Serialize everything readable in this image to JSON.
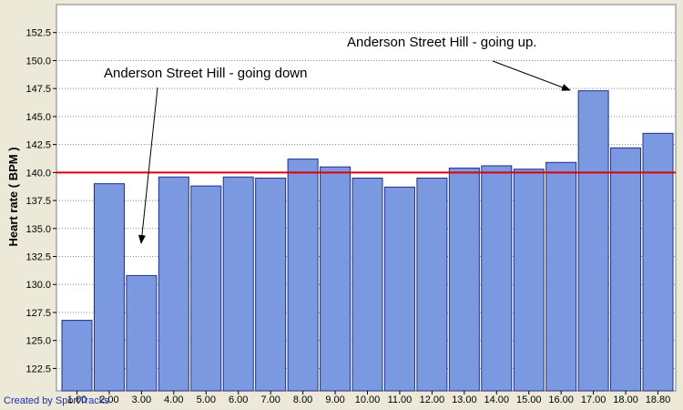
{
  "credit": "Created by SportTracks",
  "chart_data": {
    "type": "bar",
    "ylabel": "Heart rate ( BPM )",
    "xlabel": "",
    "ylim": [
      120.5,
      155
    ],
    "y_ticks": [
      122.5,
      125.0,
      127.5,
      130.0,
      132.5,
      135.0,
      137.5,
      140.0,
      142.5,
      145.0,
      147.5,
      150.0,
      152.5
    ],
    "categories": [
      "1.00",
      "2.00",
      "3.00",
      "4.00",
      "5.00",
      "6.00",
      "7.00",
      "8.00",
      "9.00",
      "10.00",
      "11.00",
      "12.00",
      "13.00",
      "14.00",
      "15.00",
      "16.00",
      "17.00",
      "18.00",
      "18.80"
    ],
    "values": [
      126.8,
      139.0,
      130.8,
      139.6,
      138.8,
      139.6,
      139.5,
      141.2,
      140.5,
      139.5,
      138.7,
      139.5,
      140.4,
      140.6,
      140.3,
      140.9,
      147.3,
      142.2,
      143.5
    ],
    "reference_line": 140.0,
    "grid": true,
    "colors": {
      "bar": "#7b99e0",
      "bar_edge": "#1f2f8a",
      "reference_line": "#e00000",
      "plot_bg": "#ffffff",
      "frame_bg": "#ece9d8"
    },
    "annotations": [
      {
        "text": "Anderson Street Hill - going down",
        "points_to_category": "3.00"
      },
      {
        "text": "Anderson Street Hill - going up.",
        "points_to_category": "17.00"
      }
    ]
  }
}
